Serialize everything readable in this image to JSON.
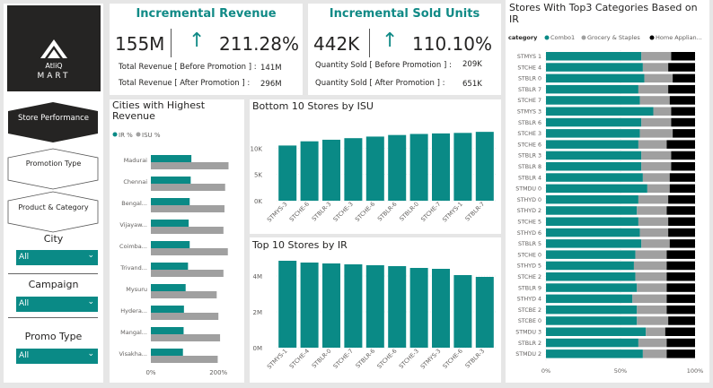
{
  "logo": {
    "line1": "AtliQ",
    "line2": "MART"
  },
  "nav": {
    "items": [
      {
        "label": "Store Performance"
      },
      {
        "label": "Promotion Type"
      },
      {
        "label": "Product & Category"
      }
    ]
  },
  "filters": [
    {
      "label": "City",
      "value": "All"
    },
    {
      "label": "Campaign",
      "value": "All"
    },
    {
      "label": "Promo Type",
      "value": "All"
    }
  ],
  "colors": {
    "teal": "#0a8a86",
    "grey": "#a0a0a0",
    "black": "#000000"
  },
  "kpi": {
    "revenue": {
      "title": "Incremental Revenue",
      "value": "155M",
      "pct": "211.28%",
      "arrow": "↑",
      "before_label": "Total Revenue [ Before Promotion ] :",
      "before_value": "141M",
      "after_label": "Total Revenue [ After Promotion ] :",
      "after_value": "296M"
    },
    "units": {
      "title": "Incremental Sold Units",
      "value": "442K",
      "pct": "110.10%",
      "arrow": "↑",
      "before_label": "Quantity Sold [ Before Promotion ] :",
      "before_value": "209K",
      "after_label": "Quantity Sold [ After Promotion ] :",
      "after_value": "651K"
    }
  },
  "chart_data": [
    {
      "id": "cities",
      "type": "bar",
      "orientation": "horizontal",
      "title": "Cities with Highest Revenue",
      "legend": [
        "IR %",
        "ISU %"
      ],
      "categories": [
        "Madurai",
        "Chennai",
        "Bengal...",
        "Vijayaw...",
        "Coimba...",
        "Trivand...",
        "Mysuru",
        "Hydera...",
        "Mangal...",
        "Visakha..."
      ],
      "series": [
        {
          "name": "IR %",
          "values": [
            120,
            118,
            115,
            112,
            115,
            110,
            103,
            98,
            97,
            95
          ]
        },
        {
          "name": "ISU %",
          "values": [
            230,
            220,
            218,
            215,
            228,
            215,
            195,
            200,
            205,
            198
          ]
        }
      ],
      "xticks": [
        "0%",
        "200%"
      ],
      "xlim": [
        0,
        250
      ]
    },
    {
      "id": "bottom10",
      "type": "bar",
      "title": "Bottom 10 Stores by ISU",
      "categories": [
        "STMYS-3",
        "STCHE-6",
        "STBLR-3",
        "STCHE-3",
        "STCHE-6",
        "STBLR-6",
        "STBLR-0",
        "STCHE-7",
        "STMYS-1",
        "STBLR-7"
      ],
      "values": [
        10500,
        11300,
        11600,
        11900,
        12200,
        12500,
        12700,
        12800,
        12900,
        13100
      ],
      "yticks": [
        "0K",
        "5K",
        "10K"
      ],
      "ylim": [
        0,
        15000
      ]
    },
    {
      "id": "top10",
      "type": "bar",
      "title": "Top 10 Stores by IR",
      "categories": [
        "STMYS-1",
        "STCHE-4",
        "STBLR-0",
        "STCHE-7",
        "STBLR-6",
        "STCHE-6",
        "STCHE-3",
        "STMYS-3",
        "STCHE-6",
        "STBLR-3"
      ],
      "values": [
        4850000,
        4750000,
        4700000,
        4650000,
        4600000,
        4550000,
        4450000,
        4400000,
        4050000,
        3950000
      ],
      "yticks": [
        "0M",
        "2M",
        "4M"
      ],
      "ylim": [
        0,
        5000000
      ]
    },
    {
      "id": "top3cat",
      "type": "bar",
      "orientation": "horizontal",
      "stacked": "100%",
      "title": "Stores With Top3 Categories Based on IR",
      "legend_title": "category",
      "legend": [
        "Combo1",
        "Grocery & Staples",
        "Home Applian..."
      ],
      "categories": [
        "STMYS 1",
        "STCHE 4",
        "STBLR 0",
        "STBLR 7",
        "STCHE 7",
        "STMYS 3",
        "STBLR 6",
        "STCHE 3",
        "STCHE 6",
        "STBLR 3",
        "STBLR 8",
        "STBLR 4",
        "STMDU 0",
        "STHYD 0",
        "STHYD 2",
        "STCHE 5",
        "STHYD 6",
        "STBLR 5",
        "STCHE 0",
        "STHYD 5",
        "STCHE 2",
        "STBLR 9",
        "STHYD 4",
        "STCBE 2",
        "STCBE 0",
        "STMDU 3",
        "STBLR 2",
        "STMDU 2"
      ],
      "series": [
        {
          "name": "Combo1",
          "values": [
            64,
            65,
            66,
            62,
            63,
            72,
            64,
            63,
            62,
            64,
            64,
            65,
            68,
            62,
            61,
            62,
            63,
            64,
            60,
            59,
            60,
            61,
            58,
            61,
            61,
            67,
            62,
            65
          ]
        },
        {
          "name": "Grocery & Staples",
          "values": [
            20,
            17,
            19,
            20,
            20,
            12,
            20,
            22,
            19,
            20,
            20,
            18,
            15,
            20,
            20,
            20,
            19,
            19,
            21,
            22,
            21,
            20,
            23,
            20,
            21,
            13,
            19,
            16
          ]
        },
        {
          "name": "Home Applian...",
          "values": [
            16,
            18,
            15,
            18,
            17,
            16,
            16,
            15,
            19,
            16,
            16,
            17,
            17,
            18,
            19,
            18,
            18,
            17,
            19,
            19,
            19,
            19,
            19,
            19,
            18,
            20,
            19,
            19
          ]
        }
      ],
      "xticks": [
        "0%",
        "50%",
        "100%"
      ],
      "xlim": [
        0,
        100
      ]
    }
  ]
}
